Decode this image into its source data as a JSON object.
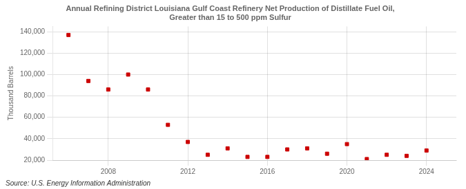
{
  "chart_data": {
    "type": "scatter",
    "title": [
      "Annual Refining District Louisiana Gulf Coast Refinery Net Production of Distillate Fuel Oil,",
      "Greater than 15 to 500 ppm Sulfur"
    ],
    "ylabel": "Thousand Barrels",
    "annotations": [
      "Source: U.S. Energy Information Administration"
    ],
    "x": [
      2006,
      2007,
      2008,
      2009,
      2010,
      2011,
      2012,
      2013,
      2014,
      2015,
      2016,
      2017,
      2018,
      2019,
      2020,
      2021,
      2022,
      2023,
      2024
    ],
    "values": [
      137000,
      94000,
      86000,
      100000,
      86000,
      53000,
      37000,
      25000,
      31000,
      23000,
      23000,
      30000,
      31000,
      26000,
      35000,
      21000,
      25000,
      24000,
      29000
    ],
    "color": "#cc0000",
    "marker": "square",
    "xlim": [
      2005.2,
      2025.5
    ],
    "xticks": [
      2008,
      2012,
      2016,
      2020,
      2024
    ],
    "ylim": [
      20000,
      145000
    ],
    "yticks": [
      {
        "value": 20000,
        "label": "20,000"
      },
      {
        "value": 40000,
        "label": "40,000"
      },
      {
        "value": 60000,
        "label": "60,000"
      },
      {
        "value": 80000,
        "label": "80,000"
      },
      {
        "value": 100000,
        "label": "100,000"
      },
      {
        "value": 120000,
        "label": "120,000"
      },
      {
        "value": 140000,
        "label": "140,000"
      }
    ],
    "grid": true
  }
}
